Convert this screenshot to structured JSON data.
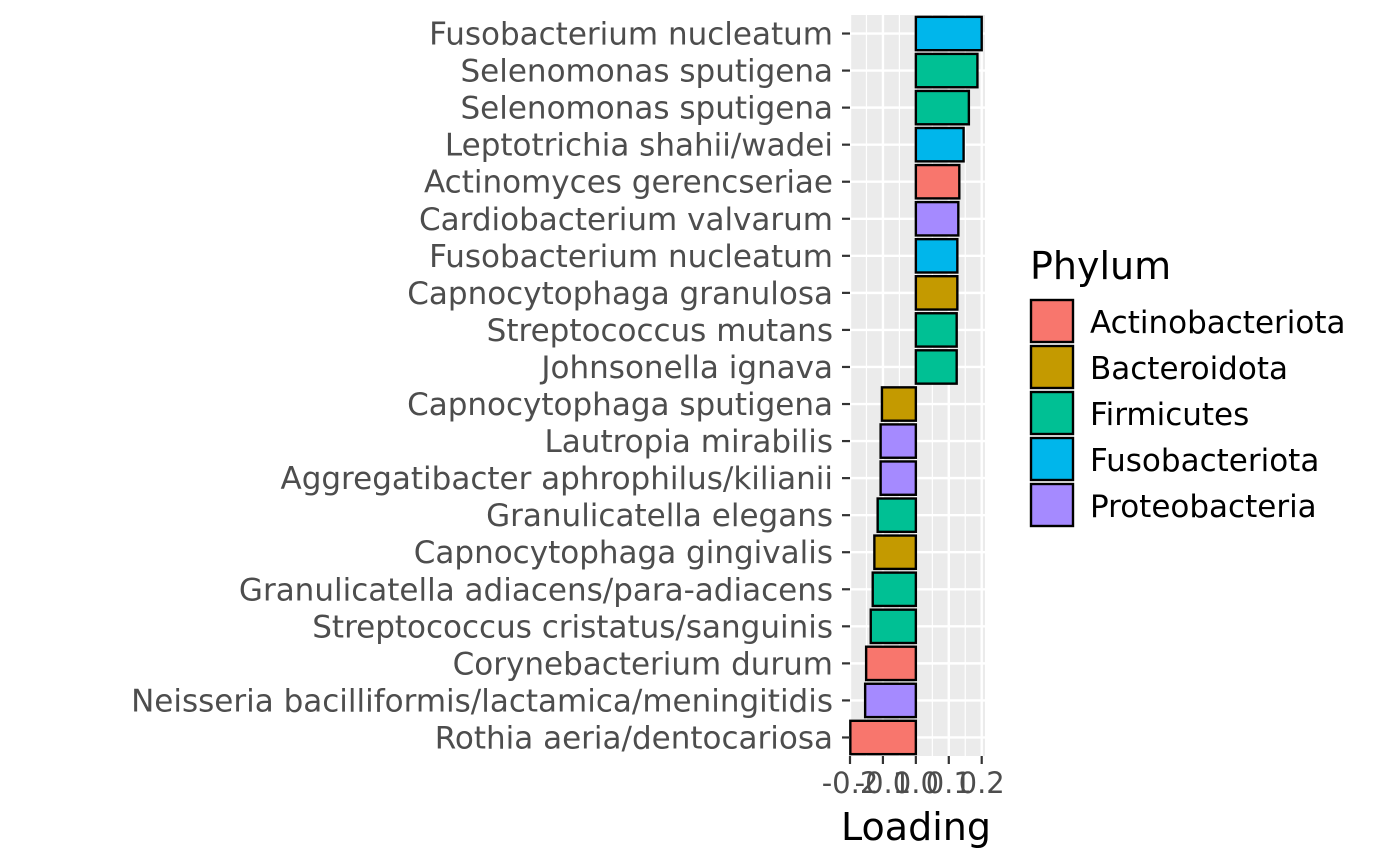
{
  "chart_data": {
    "type": "bar",
    "orientation": "horizontal",
    "xlabel": "Loading",
    "ylabel": "",
    "xlim": [
      -0.2,
      0.21
    ],
    "xticks": [
      -0.2,
      -0.1,
      0.0,
      0.1,
      0.2
    ],
    "xtick_labels": [
      "-0.2",
      "-0.1",
      "0.0",
      "0.1",
      "0.2"
    ],
    "grid": true,
    "legend": {
      "title": "Phylum",
      "position": "right",
      "entries": [
        {
          "name": "Actinobacteriota",
          "color": "#F8766D"
        },
        {
          "name": "Bacteroidota",
          "color": "#C49A00"
        },
        {
          "name": "Firmicutes",
          "color": "#00C094"
        },
        {
          "name": "Fusobacteriota",
          "color": "#00B6EB"
        },
        {
          "name": "Proteobacteria",
          "color": "#A58AFF"
        }
      ]
    },
    "bars": [
      {
        "taxon": "Fusobacterium nucleatum",
        "value": 0.2,
        "phylum": "Fusobacteriota"
      },
      {
        "taxon": "Selenomonas sputigena",
        "value": 0.187,
        "phylum": "Firmicutes"
      },
      {
        "taxon": "Selenomonas sputigena",
        "value": 0.161,
        "phylum": "Firmicutes"
      },
      {
        "taxon": "Leptotrichia shahii/wadei",
        "value": 0.145,
        "phylum": "Fusobacteriota"
      },
      {
        "taxon": "Actinomyces gerencseriae",
        "value": 0.132,
        "phylum": "Actinobacteriota"
      },
      {
        "taxon": "Cardiobacterium valvarum",
        "value": 0.129,
        "phylum": "Proteobacteria"
      },
      {
        "taxon": "Fusobacterium nucleatum",
        "value": 0.126,
        "phylum": "Fusobacteriota"
      },
      {
        "taxon": "Capnocytophaga granulosa",
        "value": 0.126,
        "phylum": "Bacteroidota"
      },
      {
        "taxon": "Streptococcus mutans",
        "value": 0.124,
        "phylum": "Firmicutes"
      },
      {
        "taxon": "Johnsonella ignava",
        "value": 0.124,
        "phylum": "Firmicutes"
      },
      {
        "taxon": "Capnocytophaga sputigena",
        "value": -0.103,
        "phylum": "Bacteroidota"
      },
      {
        "taxon": "Lautropia mirabilis",
        "value": -0.107,
        "phylum": "Proteobacteria"
      },
      {
        "taxon": "Aggregatibacter aphrophilus/kilianii",
        "value": -0.107,
        "phylum": "Proteobacteria"
      },
      {
        "taxon": "Granulicatella elegans",
        "value": -0.116,
        "phylum": "Firmicutes"
      },
      {
        "taxon": "Capnocytophaga gingivalis",
        "value": -0.126,
        "phylum": "Bacteroidota"
      },
      {
        "taxon": "Granulicatella adiacens/para-adiacens",
        "value": -0.131,
        "phylum": "Firmicutes"
      },
      {
        "taxon": "Streptococcus cristatus/sanguinis",
        "value": -0.137,
        "phylum": "Firmicutes"
      },
      {
        "taxon": "Corynebacterium durum",
        "value": -0.151,
        "phylum": "Actinobacteriota"
      },
      {
        "taxon": "Neisseria bacilliformis/lactamica/meningitidis",
        "value": -0.154,
        "phylum": "Proteobacteria"
      },
      {
        "taxon": "Rothia aeria/dentocariosa",
        "value": -0.199,
        "phylum": "Actinobacteriota"
      }
    ]
  }
}
